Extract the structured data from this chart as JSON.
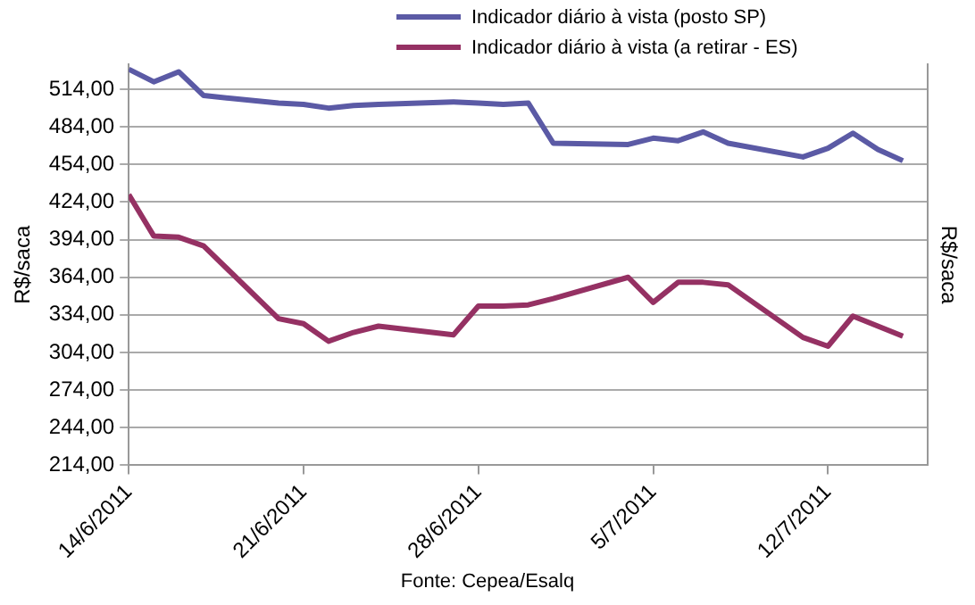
{
  "chart_data": {
    "type": "line",
    "x": [
      "2011-06-14",
      "2011-06-15",
      "2011-06-16",
      "2011-06-17",
      "2011-06-20",
      "2011-06-21",
      "2011-06-22",
      "2011-06-23",
      "2011-06-24",
      "2011-06-27",
      "2011-06-28",
      "2011-06-29",
      "2011-06-30",
      "2011-07-01",
      "2011-07-04",
      "2011-07-05",
      "2011-07-06",
      "2011-07-07",
      "2011-07-08",
      "2011-07-11",
      "2011-07-12",
      "2011-07-13",
      "2011-07-14",
      "2011-07-15"
    ],
    "series": [
      {
        "name": "Indicador diário à vista (posto SP)",
        "color": "#5b5aa5",
        "values": [
          530,
          520,
          528,
          509,
          503,
          502,
          499,
          501,
          502,
          504,
          503,
          502,
          503,
          471,
          470,
          475,
          473,
          480,
          471,
          460,
          467,
          479,
          466,
          457
        ]
      },
      {
        "name": "Indicador diário à vista (a retirar - ES)",
        "color": "#953163",
        "values": [
          430,
          397,
          396,
          389,
          331,
          327,
          313,
          320,
          325,
          318,
          341,
          341,
          342,
          347,
          364,
          344,
          360,
          360,
          358,
          316,
          309,
          333,
          325,
          317
        ]
      }
    ],
    "ylabel": "R$/saca",
    "y2label": "R$/saca",
    "xlim": [
      "2011-06-14",
      "2011-07-16"
    ],
    "xticks": [
      {
        "value": "2011-06-14",
        "label": "14/6/2011"
      },
      {
        "value": "2011-06-21",
        "label": "21/6/2011"
      },
      {
        "value": "2011-06-28",
        "label": "28/6/2011"
      },
      {
        "value": "2011-07-05",
        "label": "5/7/2011"
      },
      {
        "value": "2011-07-12",
        "label": "12/7/2011"
      }
    ],
    "ylim": [
      214,
      534
    ],
    "yticks": [
      {
        "value": 214,
        "label": "214,00"
      },
      {
        "value": 244,
        "label": "244,00"
      },
      {
        "value": 274,
        "label": "274,00"
      },
      {
        "value": 304,
        "label": "304,00"
      },
      {
        "value": 334,
        "label": "334,00"
      },
      {
        "value": 364,
        "label": "364,00"
      },
      {
        "value": 394,
        "label": "394,00"
      },
      {
        "value": 424,
        "label": "424,00"
      },
      {
        "value": 454,
        "label": "454,00"
      },
      {
        "value": 484,
        "label": "484,00"
      },
      {
        "value": 514,
        "label": "514,00"
      }
    ],
    "grid": "y",
    "legend": "top",
    "marker": "none",
    "line_style": "solid",
    "annotations": [
      "Fonte: Cepea/Esalq"
    ]
  }
}
